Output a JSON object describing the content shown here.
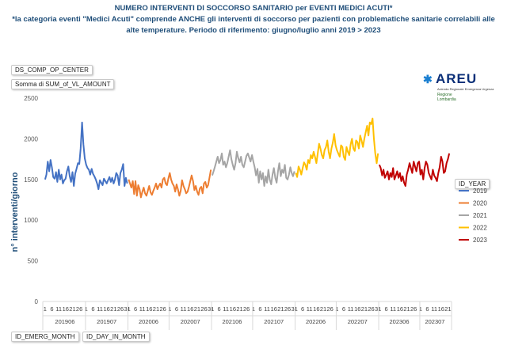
{
  "title": "NUMERO INTERVENTI DI SOCCORSO SANITARIO per EVENTI MEDICI ACUTI*",
  "subtitle": "*la categoria eventi \"Medici Acuti\" comprende ANCHE gli interventi di soccorso per pazienti con problematiche sanitarie correlabili alle alte temperature. Periodo di riferimento: giugno/luglio anni 2019 > 2023",
  "pivot_fields": {
    "filter": "DS_COMP_OP_CENTER",
    "value": "Somma di SUM_of_VL_AMOUNT",
    "axis_month": "ID_EMERG_MONTH",
    "axis_day": "ID_DAY_IN_MONTH",
    "legend": "ID_YEAR"
  },
  "logo": {
    "text": "AREU",
    "subtext": "Azienda Regionale Emergenza Urgenza",
    "region_line1": "Regione",
    "region_line2": "Lombardia"
  },
  "colors": {
    "2019": "#4472c4",
    "2020": "#ed7d31",
    "2021": "#a5a5a5",
    "2022": "#ffc000",
    "2023": "#c00000",
    "title": "#1f4e79"
  },
  "chart_data": {
    "type": "line",
    "ylabel": "n° interventi/giorno",
    "ylim": [
      0,
      2500
    ],
    "yticks": [
      0,
      500,
      1000,
      1500,
      2000,
      2500
    ],
    "grid": false,
    "legend_position": "right",
    "day_tick_labels": [
      "1",
      "6",
      "11",
      "16",
      "21",
      "26",
      "31"
    ],
    "months": [
      {
        "label": "201906",
        "year": "2019",
        "days": 30,
        "values": [
          1500,
          1560,
          1720,
          1600,
          1740,
          1650,
          1530,
          1510,
          1590,
          1470,
          1620,
          1500,
          1560,
          1450,
          1490,
          1510,
          1600,
          1660,
          1540,
          1470,
          1590,
          1420,
          1570,
          1630,
          1700,
          1690,
          1880,
          2200,
          1930,
          1760
        ]
      },
      {
        "label": "201907",
        "year": "2019",
        "days": 31,
        "values": [
          1680,
          1640,
          1620,
          1560,
          1630,
          1570,
          1540,
          1500,
          1450,
          1380,
          1490,
          1460,
          1430,
          1510,
          1480,
          1450,
          1490,
          1530,
          1470,
          1520,
          1450,
          1500,
          1580,
          1550,
          1430,
          1580,
          1620,
          1690,
          1420,
          1520,
          1450
        ]
      },
      {
        "label": "202006",
        "year": "2020",
        "days": 30,
        "values": [
          1500,
          1450,
          1400,
          1480,
          1320,
          1480,
          1300,
          1430,
          1380,
          1280,
          1350,
          1400,
          1330,
          1300,
          1360,
          1420,
          1340,
          1310,
          1360,
          1400,
          1450,
          1380,
          1420,
          1450,
          1400,
          1500,
          1520,
          1450,
          1430,
          1510
        ]
      },
      {
        "label": "202007",
        "year": "2020",
        "days": 31,
        "values": [
          1580,
          1500,
          1450,
          1420,
          1350,
          1440,
          1380,
          1300,
          1360,
          1490,
          1420,
          1380,
          1330,
          1350,
          1410,
          1480,
          1550,
          1480,
          1370,
          1420,
          1350,
          1310,
          1390,
          1410,
          1330,
          1450,
          1470,
          1400,
          1430,
          1520,
          1620
        ]
      },
      {
        "label": "202106",
        "year": "2021",
        "days": 30,
        "values": [
          1550,
          1600,
          1660,
          1720,
          1780,
          1700,
          1740,
          1820,
          1680,
          1720,
          1650,
          1700,
          1780,
          1860,
          1750,
          1680,
          1620,
          1700,
          1840,
          1760,
          1710,
          1780,
          1680,
          1650,
          1720,
          1790,
          1820,
          1770,
          1720,
          1800
        ]
      },
      {
        "label": "202107",
        "year": "2021",
        "days": 31,
        "values": [
          1720,
          1650,
          1550,
          1630,
          1460,
          1600,
          1500,
          1580,
          1420,
          1540,
          1460,
          1620,
          1500,
          1440,
          1560,
          1640,
          1520,
          1460,
          1600,
          1700,
          1540,
          1620,
          1580,
          1680,
          1520,
          1500,
          1560,
          1650,
          1580,
          1540,
          1600
        ]
      },
      {
        "label": "202206",
        "year": "2022",
        "days": 30,
        "values": [
          1580,
          1530,
          1660,
          1620,
          1560,
          1640,
          1710,
          1680,
          1620,
          1740,
          1700,
          1800,
          1760,
          1840,
          1780,
          1700,
          1820,
          1940,
          1880,
          1800,
          1760,
          1860,
          1900,
          1980,
          1840,
          1760,
          1880,
          1950,
          2060,
          1920
        ]
      },
      {
        "label": "202207",
        "year": "2022",
        "days": 31,
        "values": [
          1860,
          1820,
          1780,
          1920,
          1900,
          1780,
          1740,
          1900,
          1840,
          1800,
          1930,
          2000,
          1880,
          1850,
          1980,
          1960,
          1880,
          2040,
          1980,
          1900,
          2000,
          2080,
          2160,
          2040,
          2200,
          2180,
          2250,
          2000,
          1820,
          1700,
          1820
        ]
      },
      {
        "label": "202306",
        "year": "2023",
        "days": 30,
        "values": [
          1680,
          1640,
          1550,
          1620,
          1520,
          1560,
          1600,
          1500,
          1580,
          1530,
          1640,
          1500,
          1550,
          1600,
          1520,
          1580,
          1480,
          1540,
          1460,
          1420,
          1560,
          1620,
          1700,
          1640,
          1580,
          1720,
          1660,
          1600,
          1700,
          1720
        ]
      },
      {
        "label": "202307",
        "year": "2023",
        "days": 22,
        "values": [
          1560,
          1620,
          1500,
          1640,
          1720,
          1680,
          1580,
          1540,
          1500,
          1620,
          1550,
          1520,
          1480,
          1580,
          1650,
          1780,
          1720,
          1580,
          1600,
          1700,
          1750,
          1820
        ]
      }
    ]
  }
}
